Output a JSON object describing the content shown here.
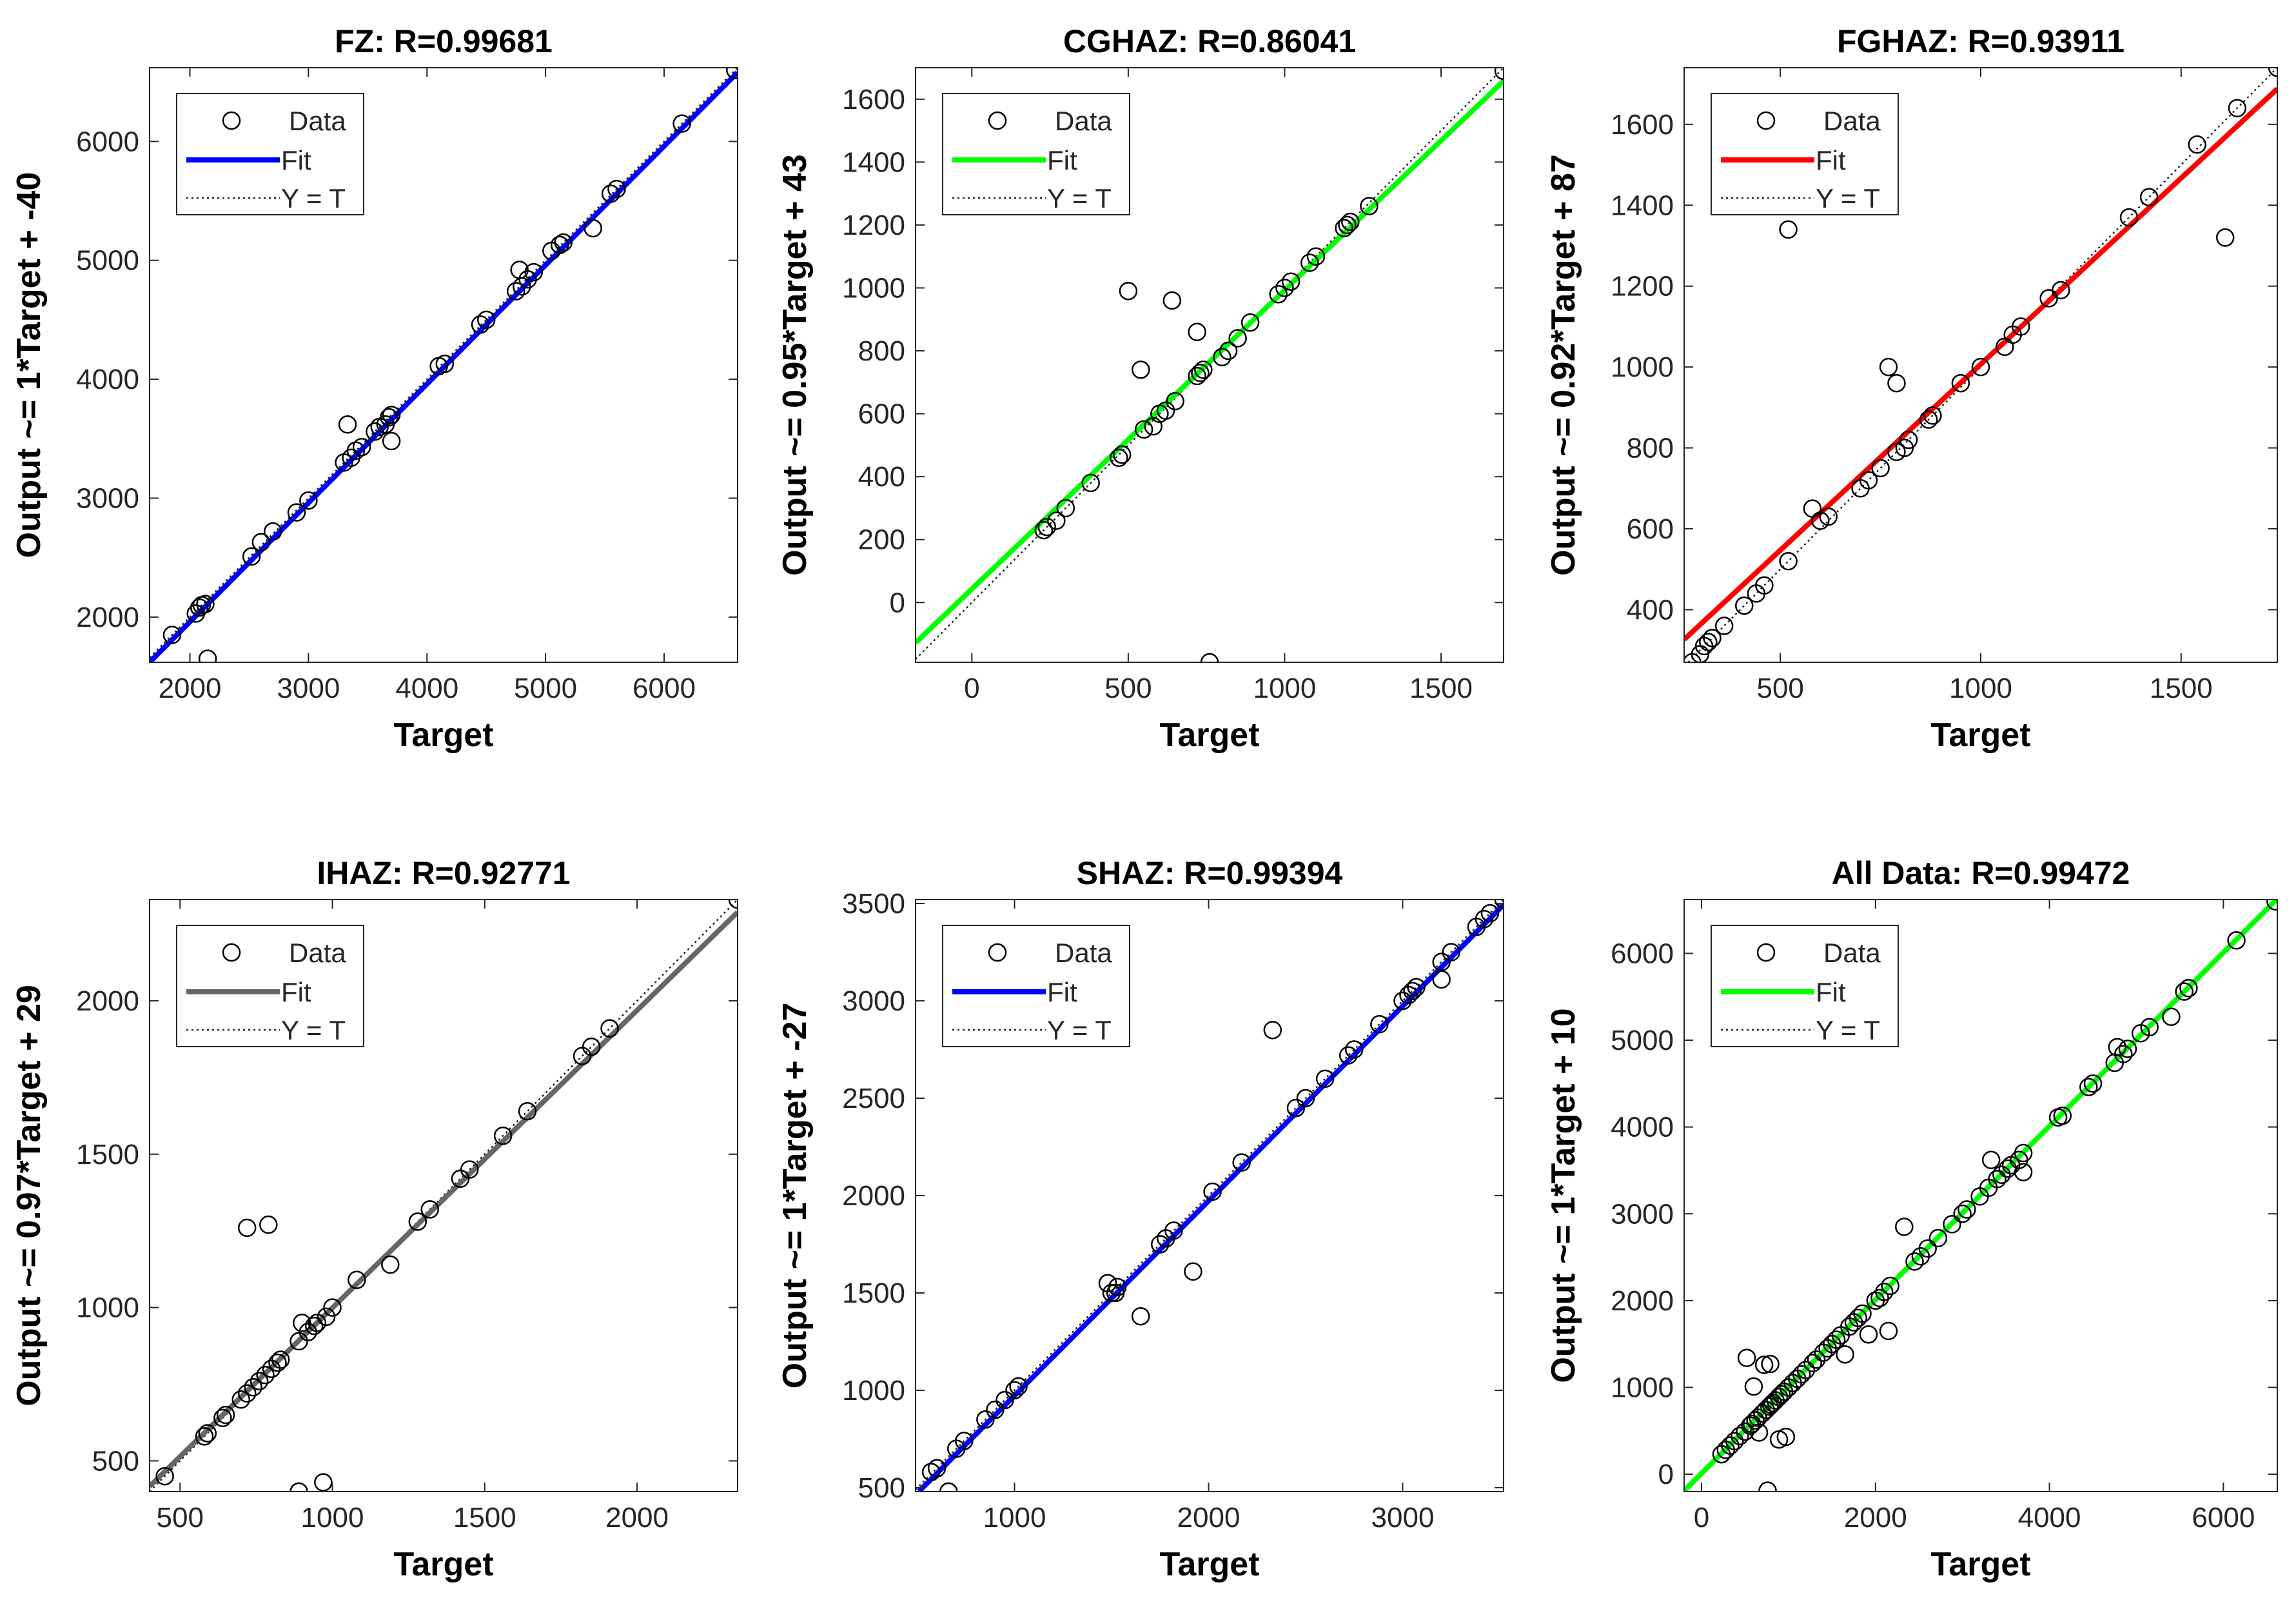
{
  "figure": {
    "panel_count": 6
  },
  "chart_data": [
    {
      "type": "scatter",
      "title": "FZ: R=0.99681",
      "xlabel": "Target",
      "ylabel": "Output ~= 1*Target + -40",
      "xlim": [
        1660,
        6620
      ],
      "ylim": [
        1620,
        6620
      ],
      "xticks": [
        2000,
        3000,
        4000,
        5000,
        6000
      ],
      "yticks": [
        2000,
        3000,
        4000,
        5000,
        6000
      ],
      "fit": {
        "slope": 1.0,
        "intercept": -40,
        "color": "#0000ff"
      },
      "legend": {
        "data": "Data",
        "fit": "Fit",
        "ref": "Y = T"
      },
      "points": [
        [
          1850,
          1850
        ],
        [
          2050,
          2030
        ],
        [
          2080,
          2080
        ],
        [
          2100,
          2100
        ],
        [
          2130,
          2110
        ],
        [
          2150,
          1650
        ],
        [
          2520,
          2510
        ],
        [
          2600,
          2630
        ],
        [
          2700,
          2720
        ],
        [
          2900,
          2880
        ],
        [
          3000,
          2980
        ],
        [
          3300,
          3300
        ],
        [
          3330,
          3620
        ],
        [
          3360,
          3340
        ],
        [
          3400,
          3400
        ],
        [
          3450,
          3430
        ],
        [
          3560,
          3560
        ],
        [
          3600,
          3600
        ],
        [
          3650,
          3620
        ],
        [
          3680,
          3680
        ],
        [
          3700,
          3700
        ],
        [
          3700,
          3480
        ],
        [
          4100,
          4110
        ],
        [
          4150,
          4130
        ],
        [
          4450,
          4460
        ],
        [
          4500,
          4500
        ],
        [
          4750,
          4740
        ],
        [
          4780,
          4920
        ],
        [
          4800,
          4780
        ],
        [
          4850,
          4840
        ],
        [
          4900,
          4900
        ],
        [
          5050,
          5080
        ],
        [
          5120,
          5130
        ],
        [
          5150,
          5150
        ],
        [
          5400,
          5270
        ],
        [
          5550,
          5560
        ],
        [
          5600,
          5600
        ],
        [
          6150,
          6150
        ],
        [
          6600,
          6600
        ]
      ]
    },
    {
      "type": "scatter",
      "title": "CGHAZ: R=0.86041",
      "xlabel": "Target",
      "ylabel": "Output ~= 0.95*Target + 43",
      "xlim": [
        -180,
        1700
      ],
      "ylim": [
        -190,
        1700
      ],
      "xticks": [
        0,
        500,
        1000,
        1500
      ],
      "yticks": [
        0,
        200,
        400,
        600,
        800,
        1000,
        1200,
        1400,
        1600
      ],
      "fit": {
        "slope": 0.95,
        "intercept": 43,
        "color": "#00ff00"
      },
      "legend": {
        "data": "Data",
        "fit": "Fit",
        "ref": "Y = T"
      },
      "points": [
        [
          230,
          230
        ],
        [
          240,
          240
        ],
        [
          270,
          260
        ],
        [
          300,
          300
        ],
        [
          380,
          380
        ],
        [
          470,
          460
        ],
        [
          480,
          470
        ],
        [
          500,
          990
        ],
        [
          540,
          740
        ],
        [
          550,
          550
        ],
        [
          580,
          560
        ],
        [
          600,
          600
        ],
        [
          620,
          610
        ],
        [
          640,
          960
        ],
        [
          650,
          640
        ],
        [
          720,
          720
        ],
        [
          730,
          730
        ],
        [
          740,
          740
        ],
        [
          720,
          860
        ],
        [
          760,
          -190
        ],
        [
          800,
          780
        ],
        [
          820,
          800
        ],
        [
          850,
          840
        ],
        [
          890,
          890
        ],
        [
          980,
          980
        ],
        [
          1000,
          1000
        ],
        [
          1020,
          1020
        ],
        [
          1080,
          1080
        ],
        [
          1100,
          1100
        ],
        [
          1190,
          1190
        ],
        [
          1200,
          1200
        ],
        [
          1210,
          1210
        ],
        [
          1270,
          1260
        ],
        [
          1700,
          1690
        ]
      ]
    },
    {
      "type": "scatter",
      "title": "FGHAZ: R=0.93911",
      "xlabel": "Target",
      "ylabel": "Output ~= 0.92*Target + 87",
      "xlim": [
        260,
        1740
      ],
      "ylim": [
        270,
        1740
      ],
      "xticks": [
        500,
        1000,
        1500
      ],
      "yticks": [
        400,
        600,
        800,
        1000,
        1200,
        1400,
        1600
      ],
      "fit": {
        "slope": 0.92,
        "intercept": 87,
        "color": "#ff0000"
      },
      "legend": {
        "data": "Data",
        "fit": "Fit",
        "ref": "Y = T"
      },
      "points": [
        [
          280,
          270
        ],
        [
          300,
          290
        ],
        [
          310,
          310
        ],
        [
          320,
          320
        ],
        [
          330,
          330
        ],
        [
          360,
          360
        ],
        [
          410,
          410
        ],
        [
          440,
          440
        ],
        [
          460,
          460
        ],
        [
          520,
          520
        ],
        [
          520,
          1340
        ],
        [
          580,
          650
        ],
        [
          600,
          620
        ],
        [
          620,
          630
        ],
        [
          700,
          700
        ],
        [
          720,
          720
        ],
        [
          750,
          750
        ],
        [
          770,
          1000
        ],
        [
          790,
          960
        ],
        [
          790,
          790
        ],
        [
          810,
          800
        ],
        [
          820,
          820
        ],
        [
          870,
          870
        ],
        [
          880,
          880
        ],
        [
          950,
          960
        ],
        [
          1000,
          1000
        ],
        [
          1060,
          1050
        ],
        [
          1080,
          1080
        ],
        [
          1100,
          1100
        ],
        [
          1170,
          1170
        ],
        [
          1200,
          1190
        ],
        [
          1370,
          1370
        ],
        [
          1420,
          1420
        ],
        [
          1540,
          1550
        ],
        [
          1610,
          1320
        ],
        [
          1640,
          1640
        ],
        [
          1740,
          1740
        ]
      ]
    },
    {
      "type": "scatter",
      "title": "IHAZ: R=0.92771",
      "xlabel": "Target",
      "ylabel": "Output ~= 0.97*Target + 29",
      "xlim": [
        400,
        2330
      ],
      "ylim": [
        400,
        2330
      ],
      "xticks": [
        500,
        1000,
        1500,
        2000
      ],
      "yticks": [
        500,
        1000,
        1500,
        2000
      ],
      "fit": {
        "slope": 0.97,
        "intercept": 29,
        "color": "#666666"
      },
      "legend": {
        "data": "Data",
        "fit": "Fit",
        "ref": "Y = T"
      },
      "points": [
        [
          450,
          450
        ],
        [
          580,
          580
        ],
        [
          590,
          590
        ],
        [
          640,
          640
        ],
        [
          650,
          650
        ],
        [
          700,
          700
        ],
        [
          720,
          720
        ],
        [
          720,
          1260
        ],
        [
          740,
          740
        ],
        [
          760,
          760
        ],
        [
          780,
          780
        ],
        [
          790,
          1270
        ],
        [
          800,
          800
        ],
        [
          820,
          820
        ],
        [
          830,
          830
        ],
        [
          890,
          890
        ],
        [
          890,
          400
        ],
        [
          900,
          950
        ],
        [
          920,
          920
        ],
        [
          940,
          940
        ],
        [
          950,
          950
        ],
        [
          970,
          430
        ],
        [
          980,
          970
        ],
        [
          1000,
          1000
        ],
        [
          1080,
          1090
        ],
        [
          1190,
          1140
        ],
        [
          1280,
          1280
        ],
        [
          1320,
          1320
        ],
        [
          1420,
          1420
        ],
        [
          1450,
          1450
        ],
        [
          1560,
          1560
        ],
        [
          1640,
          1640
        ],
        [
          1820,
          1820
        ],
        [
          1850,
          1850
        ],
        [
          1910,
          1910
        ],
        [
          2330,
          2330
        ]
      ]
    },
    {
      "type": "scatter",
      "title": "SHAZ: R=0.99394",
      "xlabel": "Target",
      "ylabel": "Output ~= 1*Target + -27",
      "xlim": [
        490,
        3520
      ],
      "ylim": [
        480,
        3520
      ],
      "xticks": [
        1000,
        2000,
        3000
      ],
      "yticks": [
        500,
        1000,
        1500,
        2000,
        2500,
        3000,
        3500
      ],
      "fit": {
        "slope": 1.0,
        "intercept": -27,
        "color": "#0000ff"
      },
      "legend": {
        "data": "Data",
        "fit": "Fit",
        "ref": "Y = T"
      },
      "points": [
        [
          570,
          580
        ],
        [
          600,
          600
        ],
        [
          660,
          480
        ],
        [
          700,
          700
        ],
        [
          740,
          740
        ],
        [
          850,
          850
        ],
        [
          900,
          900
        ],
        [
          950,
          950
        ],
        [
          1000,
          1000
        ],
        [
          1020,
          1020
        ],
        [
          1480,
          1550
        ],
        [
          1500,
          1500
        ],
        [
          1520,
          1500
        ],
        [
          1530,
          1530
        ],
        [
          1650,
          1380
        ],
        [
          1750,
          1750
        ],
        [
          1780,
          1780
        ],
        [
          1820,
          1820
        ],
        [
          1920,
          1610
        ],
        [
          2020,
          2020
        ],
        [
          2170,
          2170
        ],
        [
          2330,
          2850
        ],
        [
          2450,
          2450
        ],
        [
          2500,
          2500
        ],
        [
          2600,
          2600
        ],
        [
          2720,
          2720
        ],
        [
          2750,
          2750
        ],
        [
          2880,
          2880
        ],
        [
          3000,
          3000
        ],
        [
          3030,
          3030
        ],
        [
          3050,
          3050
        ],
        [
          3070,
          3070
        ],
        [
          3200,
          3200
        ],
        [
          3200,
          3110
        ],
        [
          3250,
          3250
        ],
        [
          3380,
          3380
        ],
        [
          3420,
          3420
        ],
        [
          3450,
          3450
        ],
        [
          3520,
          3520
        ]
      ]
    },
    {
      "type": "scatter",
      "title": "All Data: R=0.99472",
      "xlabel": "Target",
      "ylabel": "Output ~= 1*Target + 10",
      "xlim": [
        -200,
        6620
      ],
      "ylim": [
        -200,
        6620
      ],
      "xticks": [
        0,
        2000,
        4000,
        6000
      ],
      "yticks": [
        0,
        1000,
        2000,
        3000,
        4000,
        5000,
        6000
      ],
      "fit": {
        "slope": 1.0,
        "intercept": 10,
        "color": "#00ff00"
      },
      "legend": {
        "data": "Data",
        "fit": "Fit",
        "ref": "Y = T"
      },
      "points": [
        [
          230,
          230
        ],
        [
          280,
          280
        ],
        [
          330,
          330
        ],
        [
          380,
          380
        ],
        [
          440,
          440
        ],
        [
          500,
          490
        ],
        [
          520,
          1340
        ],
        [
          560,
          560
        ],
        [
          580,
          580
        ],
        [
          600,
          1010
        ],
        [
          620,
          620
        ],
        [
          650,
          650
        ],
        [
          660,
          480
        ],
        [
          700,
          700
        ],
        [
          720,
          1260
        ],
        [
          740,
          740
        ],
        [
          760,
          -190
        ],
        [
          780,
          780
        ],
        [
          790,
          1270
        ],
        [
          800,
          800
        ],
        [
          820,
          820
        ],
        [
          850,
          850
        ],
        [
          890,
          890
        ],
        [
          890,
          400
        ],
        [
          920,
          920
        ],
        [
          950,
          950
        ],
        [
          970,
          430
        ],
        [
          1000,
          1000
        ],
        [
          1050,
          1050
        ],
        [
          1100,
          1100
        ],
        [
          1150,
          1150
        ],
        [
          1200,
          1200
        ],
        [
          1280,
          1280
        ],
        [
          1320,
          1320
        ],
        [
          1400,
          1400
        ],
        [
          1450,
          1450
        ],
        [
          1500,
          1500
        ],
        [
          1550,
          1550
        ],
        [
          1600,
          1600
        ],
        [
          1650,
          1380
        ],
        [
          1700,
          1700
        ],
        [
          1750,
          1750
        ],
        [
          1800,
          1800
        ],
        [
          1850,
          1850
        ],
        [
          1920,
          1610
        ],
        [
          2000,
          2000
        ],
        [
          2050,
          2030
        ],
        [
          2100,
          2100
        ],
        [
          2150,
          1650
        ],
        [
          2170,
          2170
        ],
        [
          2330,
          2850
        ],
        [
          2450,
          2450
        ],
        [
          2520,
          2510
        ],
        [
          2600,
          2600
        ],
        [
          2720,
          2720
        ],
        [
          2880,
          2880
        ],
        [
          3000,
          3000
        ],
        [
          3050,
          3050
        ],
        [
          3200,
          3200
        ],
        [
          3300,
          3300
        ],
        [
          3330,
          3620
        ],
        [
          3400,
          3400
        ],
        [
          3450,
          3450
        ],
        [
          3520,
          3520
        ],
        [
          3560,
          3560
        ],
        [
          3650,
          3620
        ],
        [
          3700,
          3700
        ],
        [
          3700,
          3480
        ],
        [
          4100,
          4110
        ],
        [
          4150,
          4130
        ],
        [
          4450,
          4460
        ],
        [
          4500,
          4500
        ],
        [
          4750,
          4740
        ],
        [
          4780,
          4920
        ],
        [
          4850,
          4840
        ],
        [
          4900,
          4900
        ],
        [
          5050,
          5080
        ],
        [
          5150,
          5150
        ],
        [
          5400,
          5270
        ],
        [
          5550,
          5560
        ],
        [
          5600,
          5600
        ],
        [
          6150,
          6150
        ],
        [
          6600,
          6600
        ]
      ]
    }
  ]
}
